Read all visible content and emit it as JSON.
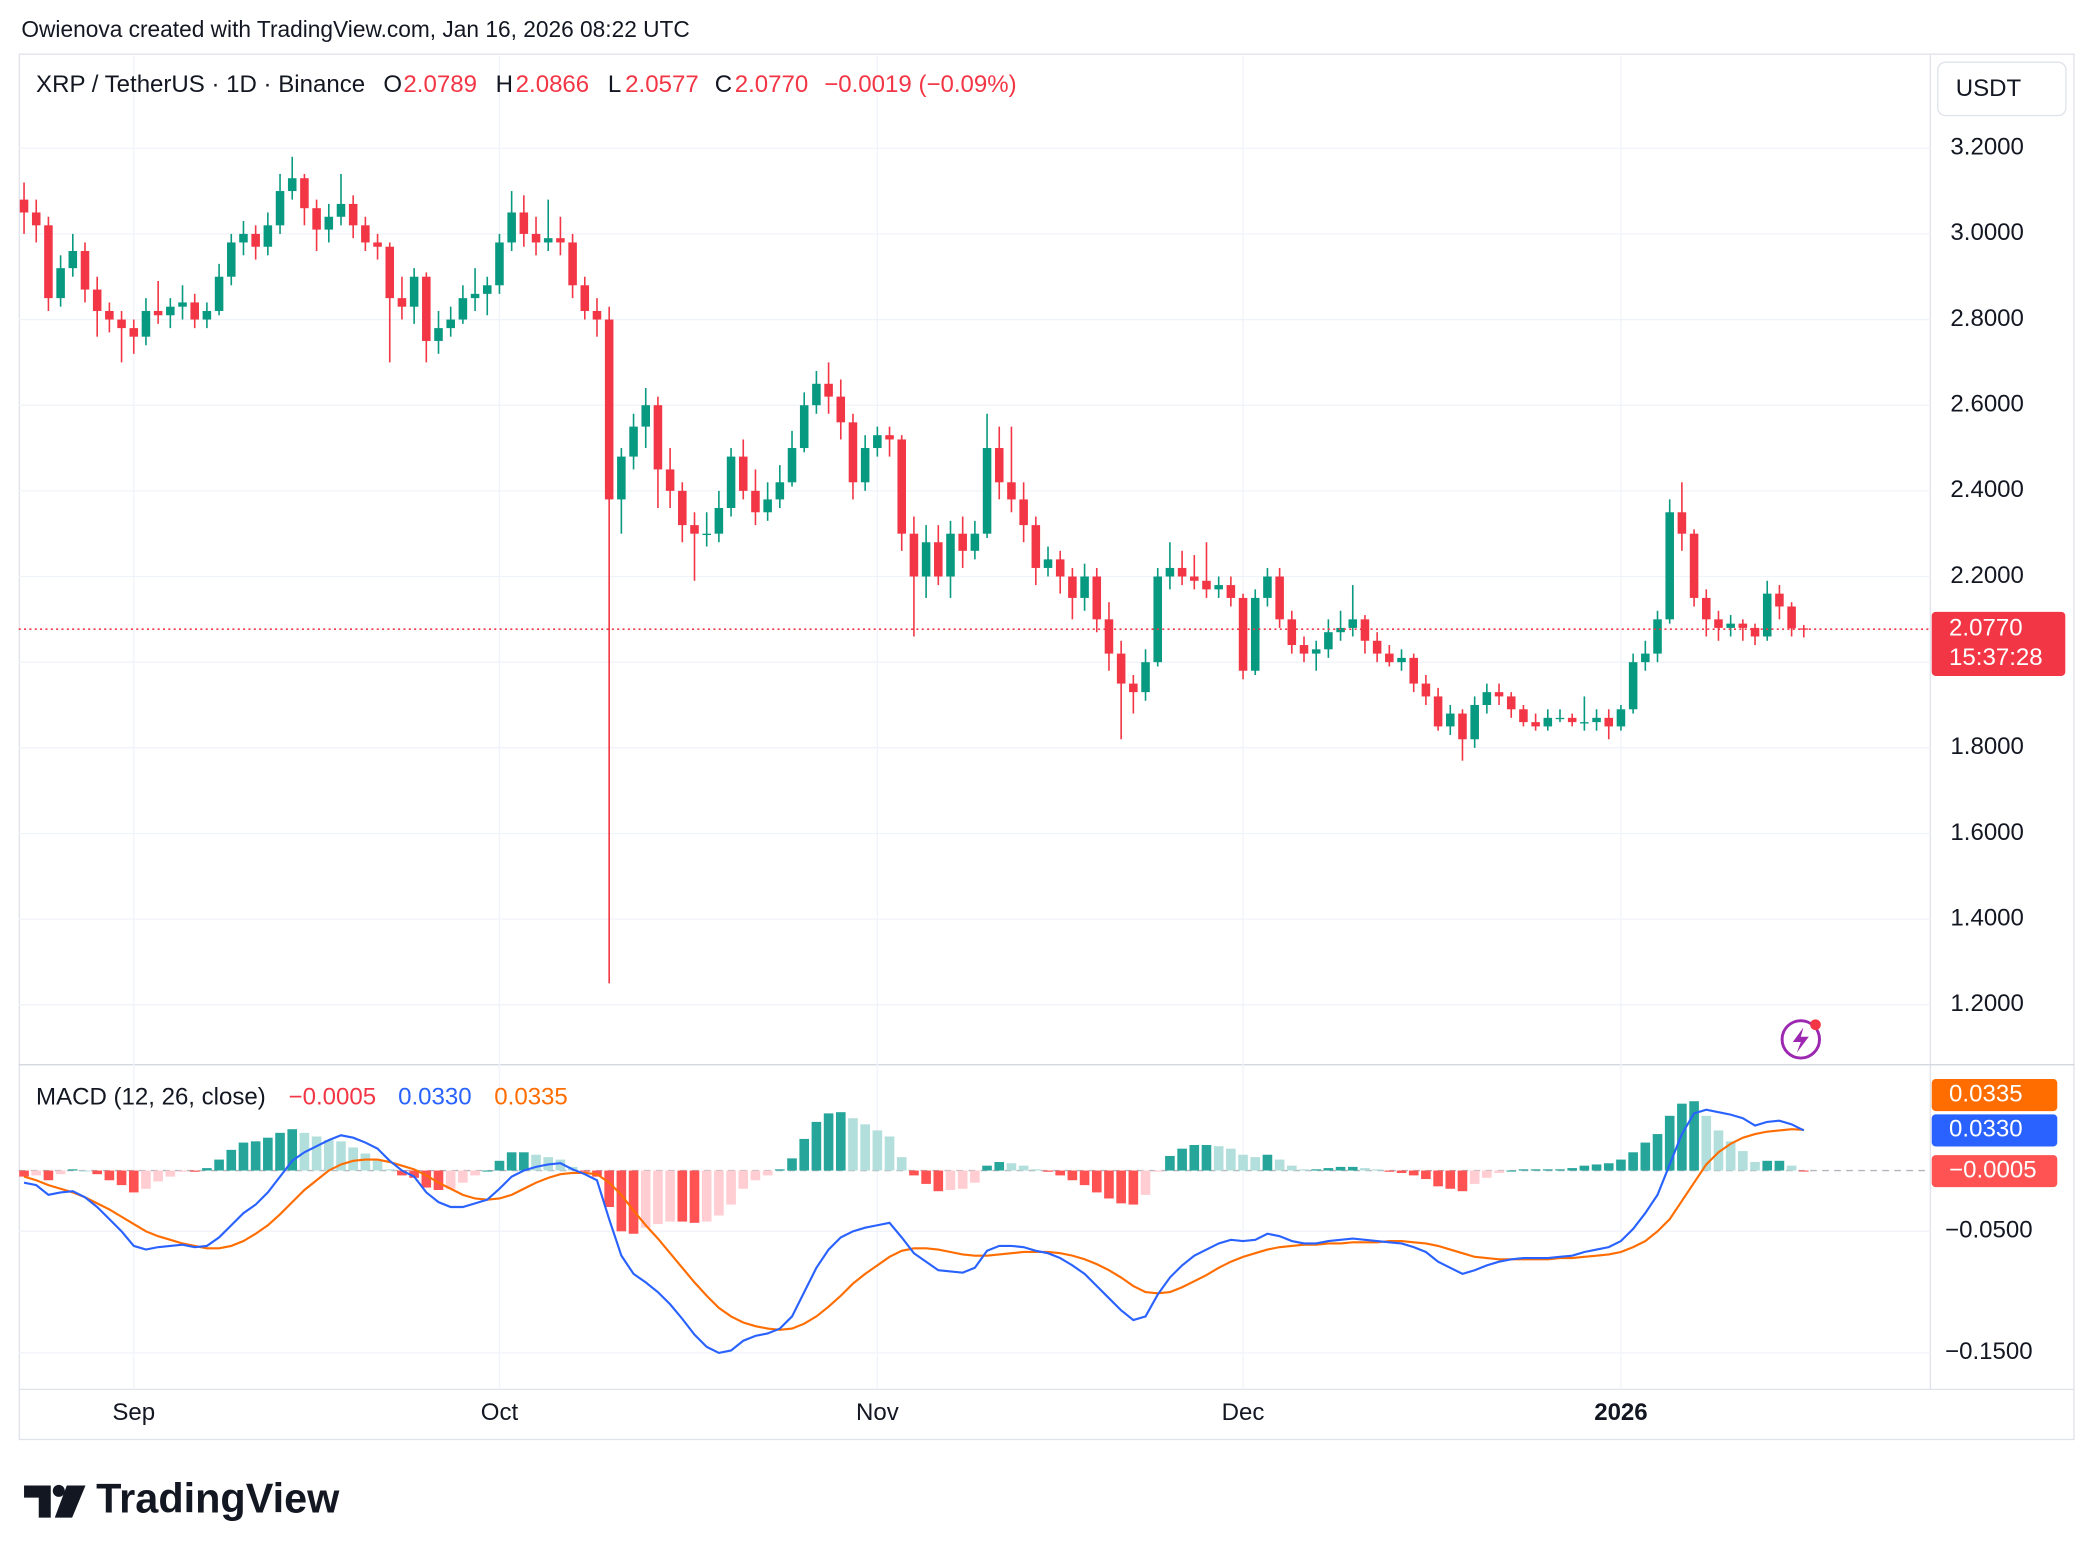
{
  "chart_data": {
    "type": "candlestick",
    "attribution": "Owienova created with TradingView.com, Jan 16, 2026 08:22 UTC",
    "symbol_label": "XRP / TetherUS · 1D · Binance",
    "ohlc_keys": [
      "O",
      "H",
      "L",
      "C"
    ],
    "ohlc_labels": [
      "2.0789",
      "2.0866",
      "2.0577",
      "2.0770"
    ],
    "change_label": "−0.0019 (−0.09%)",
    "currency": "USDT",
    "last_price_label": "2.0770",
    "countdown": "15:37:28",
    "logo": "TradingView",
    "colors": {
      "up": "#089981",
      "down": "#f23645"
    },
    "grid": true,
    "ylim": [
      1.06,
      3.415
    ],
    "yticks": [
      {
        "value": 1.2,
        "label": "1.2000"
      },
      {
        "value": 1.4,
        "label": "1.4000"
      },
      {
        "value": 1.6,
        "label": "1.6000"
      },
      {
        "value": 1.8,
        "label": "1.8000"
      },
      {
        "value": 2.0,
        "label": "2.0000"
      },
      {
        "value": 2.2,
        "label": "2.2000"
      },
      {
        "value": 2.4,
        "label": "2.4000"
      },
      {
        "value": 2.6,
        "label": "2.6000"
      },
      {
        "value": 2.8,
        "label": "2.8000"
      },
      {
        "value": 3.0,
        "label": "3.0000"
      },
      {
        "value": 3.2,
        "label": "3.2000"
      }
    ],
    "xticks": [
      {
        "value": 9,
        "label": "Sep"
      },
      {
        "value": 39,
        "label": "Oct"
      },
      {
        "value": 70,
        "label": "Nov"
      },
      {
        "value": 100,
        "label": "Dec"
      },
      {
        "value": 131,
        "label": "2026"
      }
    ],
    "candles": [
      [
        3.08,
        3.12,
        3.0,
        3.05
      ],
      [
        3.05,
        3.08,
        2.98,
        3.02
      ],
      [
        3.02,
        3.04,
        2.82,
        2.85
      ],
      [
        2.85,
        2.95,
        2.83,
        2.92
      ],
      [
        2.92,
        3.0,
        2.9,
        2.96
      ],
      [
        2.96,
        2.98,
        2.84,
        2.87
      ],
      [
        2.87,
        2.9,
        2.76,
        2.82
      ],
      [
        2.82,
        2.84,
        2.77,
        2.8
      ],
      [
        2.8,
        2.82,
        2.7,
        2.78
      ],
      [
        2.78,
        2.8,
        2.72,
        2.76
      ],
      [
        2.76,
        2.85,
        2.74,
        2.82
      ],
      [
        2.82,
        2.89,
        2.79,
        2.81
      ],
      [
        2.81,
        2.85,
        2.78,
        2.83
      ],
      [
        2.83,
        2.88,
        2.8,
        2.84
      ],
      [
        2.84,
        2.86,
        2.78,
        2.8
      ],
      [
        2.8,
        2.84,
        2.78,
        2.82
      ],
      [
        2.82,
        2.93,
        2.81,
        2.9
      ],
      [
        2.9,
        3.0,
        2.88,
        2.98
      ],
      [
        2.98,
        3.03,
        2.95,
        3.0
      ],
      [
        3.0,
        3.02,
        2.94,
        2.97
      ],
      [
        2.97,
        3.05,
        2.95,
        3.02
      ],
      [
        3.02,
        3.14,
        3.0,
        3.1
      ],
      [
        3.1,
        3.18,
        3.08,
        3.13
      ],
      [
        3.13,
        3.14,
        3.02,
        3.06
      ],
      [
        3.06,
        3.08,
        2.96,
        3.01
      ],
      [
        3.01,
        3.07,
        2.98,
        3.04
      ],
      [
        3.04,
        3.14,
        3.02,
        3.07
      ],
      [
        3.07,
        3.09,
        2.99,
        3.02
      ],
      [
        3.02,
        3.04,
        2.96,
        2.98
      ],
      [
        2.98,
        3.0,
        2.94,
        2.97
      ],
      [
        2.97,
        2.98,
        2.7,
        2.85
      ],
      [
        2.85,
        2.9,
        2.8,
        2.83
      ],
      [
        2.83,
        2.92,
        2.79,
        2.9
      ],
      [
        2.9,
        2.91,
        2.7,
        2.75
      ],
      [
        2.75,
        2.82,
        2.72,
        2.78
      ],
      [
        2.78,
        2.83,
        2.76,
        2.8
      ],
      [
        2.8,
        2.88,
        2.79,
        2.85
      ],
      [
        2.85,
        2.92,
        2.82,
        2.86
      ],
      [
        2.86,
        2.9,
        2.81,
        2.88
      ],
      [
        2.88,
        3.0,
        2.86,
        2.98
      ],
      [
        2.98,
        3.1,
        2.96,
        3.05
      ],
      [
        3.05,
        3.09,
        2.97,
        3.0
      ],
      [
        3.0,
        3.04,
        2.95,
        2.98
      ],
      [
        2.98,
        3.08,
        2.96,
        2.99
      ],
      [
        2.99,
        3.04,
        2.95,
        2.98
      ],
      [
        2.98,
        3.0,
        2.85,
        2.88
      ],
      [
        2.88,
        2.9,
        2.8,
        2.82
      ],
      [
        2.82,
        2.85,
        2.76,
        2.8
      ],
      [
        2.8,
        2.83,
        1.25,
        2.38
      ],
      [
        2.38,
        2.5,
        2.3,
        2.48
      ],
      [
        2.48,
        2.58,
        2.45,
        2.55
      ],
      [
        2.55,
        2.64,
        2.5,
        2.6
      ],
      [
        2.6,
        2.62,
        2.36,
        2.45
      ],
      [
        2.45,
        2.5,
        2.36,
        2.4
      ],
      [
        2.4,
        2.42,
        2.28,
        2.32
      ],
      [
        2.32,
        2.35,
        2.19,
        2.3
      ],
      [
        2.3,
        2.35,
        2.27,
        2.3
      ],
      [
        2.3,
        2.4,
        2.28,
        2.36
      ],
      [
        2.36,
        2.5,
        2.34,
        2.48
      ],
      [
        2.48,
        2.52,
        2.38,
        2.4
      ],
      [
        2.4,
        2.45,
        2.32,
        2.35
      ],
      [
        2.35,
        2.42,
        2.33,
        2.38
      ],
      [
        2.38,
        2.46,
        2.36,
        2.42
      ],
      [
        2.42,
        2.54,
        2.41,
        2.5
      ],
      [
        2.5,
        2.63,
        2.49,
        2.6
      ],
      [
        2.6,
        2.68,
        2.58,
        2.65
      ],
      [
        2.65,
        2.7,
        2.58,
        2.62
      ],
      [
        2.62,
        2.66,
        2.52,
        2.56
      ],
      [
        2.56,
        2.58,
        2.38,
        2.42
      ],
      [
        2.42,
        2.53,
        2.4,
        2.5
      ],
      [
        2.5,
        2.55,
        2.48,
        2.53
      ],
      [
        2.53,
        2.55,
        2.48,
        2.52
      ],
      [
        2.52,
        2.53,
        2.26,
        2.3
      ],
      [
        2.3,
        2.34,
        2.06,
        2.2
      ],
      [
        2.2,
        2.32,
        2.15,
        2.28
      ],
      [
        2.28,
        2.32,
        2.18,
        2.2
      ],
      [
        2.2,
        2.33,
        2.15,
        2.3
      ],
      [
        2.3,
        2.34,
        2.22,
        2.26
      ],
      [
        2.26,
        2.33,
        2.24,
        2.3
      ],
      [
        2.3,
        2.58,
        2.29,
        2.5
      ],
      [
        2.5,
        2.55,
        2.38,
        2.42
      ],
      [
        2.42,
        2.55,
        2.35,
        2.38
      ],
      [
        2.38,
        2.42,
        2.28,
        2.32
      ],
      [
        2.32,
        2.34,
        2.18,
        2.22
      ],
      [
        2.22,
        2.27,
        2.2,
        2.24
      ],
      [
        2.24,
        2.26,
        2.16,
        2.2
      ],
      [
        2.2,
        2.22,
        2.1,
        2.15
      ],
      [
        2.15,
        2.23,
        2.12,
        2.2
      ],
      [
        2.2,
        2.22,
        2.07,
        2.1
      ],
      [
        2.1,
        2.14,
        1.98,
        2.02
      ],
      [
        2.02,
        2.05,
        1.82,
        1.95
      ],
      [
        1.95,
        1.97,
        1.88,
        1.93
      ],
      [
        1.93,
        2.03,
        1.91,
        2.0
      ],
      [
        2.0,
        2.22,
        1.99,
        2.2
      ],
      [
        2.2,
        2.28,
        2.17,
        2.22
      ],
      [
        2.22,
        2.26,
        2.18,
        2.2
      ],
      [
        2.2,
        2.25,
        2.17,
        2.19
      ],
      [
        2.19,
        2.28,
        2.15,
        2.17
      ],
      [
        2.17,
        2.2,
        2.15,
        2.18
      ],
      [
        2.18,
        2.2,
        2.13,
        2.15
      ],
      [
        2.15,
        2.16,
        1.96,
        1.98
      ],
      [
        1.98,
        2.17,
        1.97,
        2.15
      ],
      [
        2.15,
        2.22,
        2.13,
        2.2
      ],
      [
        2.2,
        2.22,
        2.08,
        2.1
      ],
      [
        2.1,
        2.12,
        2.02,
        2.04
      ],
      [
        2.04,
        2.06,
        2.0,
        2.02
      ],
      [
        2.02,
        2.05,
        1.98,
        2.03
      ],
      [
        2.03,
        2.1,
        2.01,
        2.07
      ],
      [
        2.07,
        2.12,
        2.05,
        2.08
      ],
      [
        2.08,
        2.18,
        2.06,
        2.1
      ],
      [
        2.1,
        2.11,
        2.02,
        2.05
      ],
      [
        2.05,
        2.07,
        2.0,
        2.02
      ],
      [
        2.02,
        2.04,
        1.99,
        2.0
      ],
      [
        2.0,
        2.03,
        1.98,
        2.01
      ],
      [
        2.01,
        2.02,
        1.93,
        1.95
      ],
      [
        1.95,
        1.97,
        1.9,
        1.92
      ],
      [
        1.92,
        1.94,
        1.84,
        1.85
      ],
      [
        1.85,
        1.9,
        1.83,
        1.88
      ],
      [
        1.88,
        1.89,
        1.77,
        1.82
      ],
      [
        1.82,
        1.92,
        1.8,
        1.9
      ],
      [
        1.9,
        1.95,
        1.88,
        1.93
      ],
      [
        1.93,
        1.95,
        1.9,
        1.92
      ],
      [
        1.92,
        1.93,
        1.87,
        1.89
      ],
      [
        1.89,
        1.9,
        1.85,
        1.86
      ],
      [
        1.86,
        1.88,
        1.84,
        1.85
      ],
      [
        1.85,
        1.89,
        1.84,
        1.87
      ],
      [
        1.87,
        1.89,
        1.86,
        1.87
      ],
      [
        1.87,
        1.88,
        1.85,
        1.86
      ],
      [
        1.86,
        1.92,
        1.84,
        1.86
      ],
      [
        1.86,
        1.89,
        1.84,
        1.87
      ],
      [
        1.87,
        1.89,
        1.82,
        1.85
      ],
      [
        1.85,
        1.9,
        1.84,
        1.89
      ],
      [
        1.89,
        2.02,
        1.88,
        2.0
      ],
      [
        2.0,
        2.05,
        1.98,
        2.02
      ],
      [
        2.02,
        2.12,
        2.0,
        2.1
      ],
      [
        2.1,
        2.38,
        2.09,
        2.35
      ],
      [
        2.35,
        2.42,
        2.26,
        2.3
      ],
      [
        2.3,
        2.31,
        2.13,
        2.15
      ],
      [
        2.15,
        2.17,
        2.06,
        2.1
      ],
      [
        2.1,
        2.12,
        2.05,
        2.08
      ],
      [
        2.08,
        2.11,
        2.06,
        2.09
      ],
      [
        2.09,
        2.1,
        2.05,
        2.08
      ],
      [
        2.08,
        2.09,
        2.04,
        2.06
      ],
      [
        2.06,
        2.19,
        2.05,
        2.16
      ],
      [
        2.16,
        2.18,
        2.1,
        2.13
      ],
      [
        2.13,
        2.14,
        2.06,
        2.0789
      ],
      [
        2.0789,
        2.0866,
        2.0577,
        2.077
      ]
    ],
    "macd": {
      "title": "MACD (12, 26, close)",
      "value_labels": [
        "−0.0005",
        "0.0330",
        "0.0335"
      ],
      "y2lim": [
        -0.18,
        0.087
      ],
      "y2ticks": [
        {
          "value": -0.15,
          "label": "−0.1500"
        },
        {
          "value": -0.05,
          "label": "−0.0500"
        }
      ],
      "colors": {
        "line": "#2962ff",
        "signal": "#ff6d00",
        "up_strong": "#26a69a",
        "up_weak": "#b2dfdb",
        "down_strong": "#ff5252",
        "down_weak": "#ffcdd2",
        "zero": "#b2b5be"
      },
      "histogram": [
        -0.005,
        -0.004,
        -0.008,
        -0.003,
        0.001,
        0.0,
        -0.003,
        -0.008,
        -0.012,
        -0.018,
        -0.015,
        -0.009,
        -0.005,
        -0.001,
        -0.001,
        0.002,
        0.009,
        0.017,
        0.023,
        0.024,
        0.027,
        0.031,
        0.034,
        0.031,
        0.028,
        0.025,
        0.024,
        0.019,
        0.014,
        0.009,
        0.001,
        -0.004,
        -0.006,
        -0.014,
        -0.016,
        -0.015,
        -0.01,
        -0.004,
        0.0,
        0.008,
        0.015,
        0.015,
        0.013,
        0.011,
        0.009,
        0.003,
        -0.001,
        -0.005,
        -0.03,
        -0.05,
        -0.052,
        -0.047,
        -0.044,
        -0.042,
        -0.042,
        -0.043,
        -0.042,
        -0.037,
        -0.028,
        -0.015,
        -0.008,
        -0.004,
        0.001,
        0.01,
        0.026,
        0.04,
        0.047,
        0.048,
        0.043,
        0.038,
        0.033,
        0.028,
        0.011,
        -0.004,
        -0.011,
        -0.017,
        -0.016,
        -0.015,
        -0.01,
        0.004,
        0.007,
        0.006,
        0.004,
        0.001,
        -0.001,
        -0.004,
        -0.008,
        -0.012,
        -0.018,
        -0.023,
        -0.027,
        -0.028,
        -0.02,
        -0.001,
        0.012,
        0.018,
        0.021,
        0.021,
        0.02,
        0.018,
        0.013,
        0.011,
        0.013,
        0.009,
        0.004,
        0.001,
        0.001,
        0.002,
        0.003,
        0.003,
        0.002,
        0.001,
        -0.001,
        -0.002,
        -0.004,
        -0.007,
        -0.013,
        -0.015,
        -0.017,
        -0.011,
        -0.006,
        -0.002,
        0.0,
        0.001,
        0.001,
        0.001,
        0.001,
        0.002,
        0.004,
        0.005,
        0.006,
        0.009,
        0.015,
        0.023,
        0.03,
        0.045,
        0.055,
        0.057,
        0.045,
        0.033,
        0.024,
        0.016,
        0.007,
        0.008,
        0.008,
        0.004,
        -0.0005
      ],
      "macd": [
        -0.01,
        -0.012,
        -0.02,
        -0.018,
        -0.017,
        -0.022,
        -0.03,
        -0.04,
        -0.05,
        -0.062,
        -0.065,
        -0.063,
        -0.062,
        -0.061,
        -0.063,
        -0.062,
        -0.055,
        -0.045,
        -0.035,
        -0.028,
        -0.018,
        -0.005,
        0.008,
        0.015,
        0.02,
        0.025,
        0.029,
        0.027,
        0.023,
        0.018,
        0.008,
        0.0,
        -0.005,
        -0.018,
        -0.026,
        -0.03,
        -0.03,
        -0.027,
        -0.024,
        -0.015,
        -0.005,
        0.0,
        0.003,
        0.005,
        0.006,
        0.001,
        -0.003,
        -0.008,
        -0.04,
        -0.07,
        -0.085,
        -0.092,
        -0.1,
        -0.11,
        -0.122,
        -0.135,
        -0.145,
        -0.15,
        -0.148,
        -0.14,
        -0.136,
        -0.134,
        -0.13,
        -0.12,
        -0.1,
        -0.08,
        -0.065,
        -0.055,
        -0.05,
        -0.047,
        -0.045,
        -0.043,
        -0.055,
        -0.068,
        -0.075,
        -0.082,
        -0.083,
        -0.084,
        -0.08,
        -0.066,
        -0.062,
        -0.062,
        -0.063,
        -0.066,
        -0.068,
        -0.072,
        -0.078,
        -0.085,
        -0.095,
        -0.105,
        -0.115,
        -0.123,
        -0.12,
        -0.102,
        -0.088,
        -0.078,
        -0.07,
        -0.065,
        -0.06,
        -0.057,
        -0.058,
        -0.057,
        -0.052,
        -0.054,
        -0.058,
        -0.06,
        -0.06,
        -0.058,
        -0.057,
        -0.056,
        -0.057,
        -0.058,
        -0.059,
        -0.06,
        -0.063,
        -0.067,
        -0.075,
        -0.08,
        -0.085,
        -0.082,
        -0.078,
        -0.075,
        -0.073,
        -0.072,
        -0.072,
        -0.072,
        -0.071,
        -0.07,
        -0.067,
        -0.065,
        -0.063,
        -0.058,
        -0.048,
        -0.035,
        -0.02,
        0.005,
        0.03,
        0.047,
        0.05,
        0.048,
        0.046,
        0.043,
        0.037,
        0.04,
        0.041,
        0.038,
        0.033
      ],
      "signal": [
        -0.005,
        -0.008,
        -0.012,
        -0.015,
        -0.018,
        -0.022,
        -0.027,
        -0.032,
        -0.038,
        -0.044,
        -0.05,
        -0.054,
        -0.057,
        -0.06,
        -0.062,
        -0.064,
        -0.064,
        -0.062,
        -0.058,
        -0.052,
        -0.045,
        -0.036,
        -0.026,
        -0.016,
        -0.008,
        0.0,
        0.005,
        0.008,
        0.009,
        0.009,
        0.007,
        0.004,
        0.001,
        -0.004,
        -0.01,
        -0.015,
        -0.02,
        -0.023,
        -0.024,
        -0.023,
        -0.02,
        -0.015,
        -0.01,
        -0.006,
        -0.003,
        -0.002,
        -0.002,
        -0.003,
        -0.01,
        -0.02,
        -0.033,
        -0.045,
        -0.056,
        -0.068,
        -0.08,
        -0.092,
        -0.103,
        -0.113,
        -0.12,
        -0.125,
        -0.128,
        -0.13,
        -0.131,
        -0.13,
        -0.126,
        -0.12,
        -0.112,
        -0.103,
        -0.093,
        -0.085,
        -0.078,
        -0.071,
        -0.066,
        -0.064,
        -0.064,
        -0.065,
        -0.067,
        -0.069,
        -0.07,
        -0.07,
        -0.069,
        -0.068,
        -0.067,
        -0.067,
        -0.067,
        -0.068,
        -0.07,
        -0.073,
        -0.077,
        -0.082,
        -0.088,
        -0.095,
        -0.1,
        -0.101,
        -0.1,
        -0.096,
        -0.091,
        -0.086,
        -0.08,
        -0.075,
        -0.071,
        -0.068,
        -0.065,
        -0.063,
        -0.062,
        -0.061,
        -0.061,
        -0.06,
        -0.06,
        -0.059,
        -0.059,
        -0.059,
        -0.058,
        -0.058,
        -0.059,
        -0.06,
        -0.062,
        -0.065,
        -0.068,
        -0.071,
        -0.072,
        -0.073,
        -0.073,
        -0.073,
        -0.073,
        -0.073,
        -0.072,
        -0.072,
        -0.071,
        -0.07,
        -0.069,
        -0.067,
        -0.063,
        -0.058,
        -0.05,
        -0.04,
        -0.025,
        -0.01,
        0.005,
        0.015,
        0.022,
        0.027,
        0.03,
        0.032,
        0.033,
        0.034,
        0.0335
      ]
    }
  }
}
